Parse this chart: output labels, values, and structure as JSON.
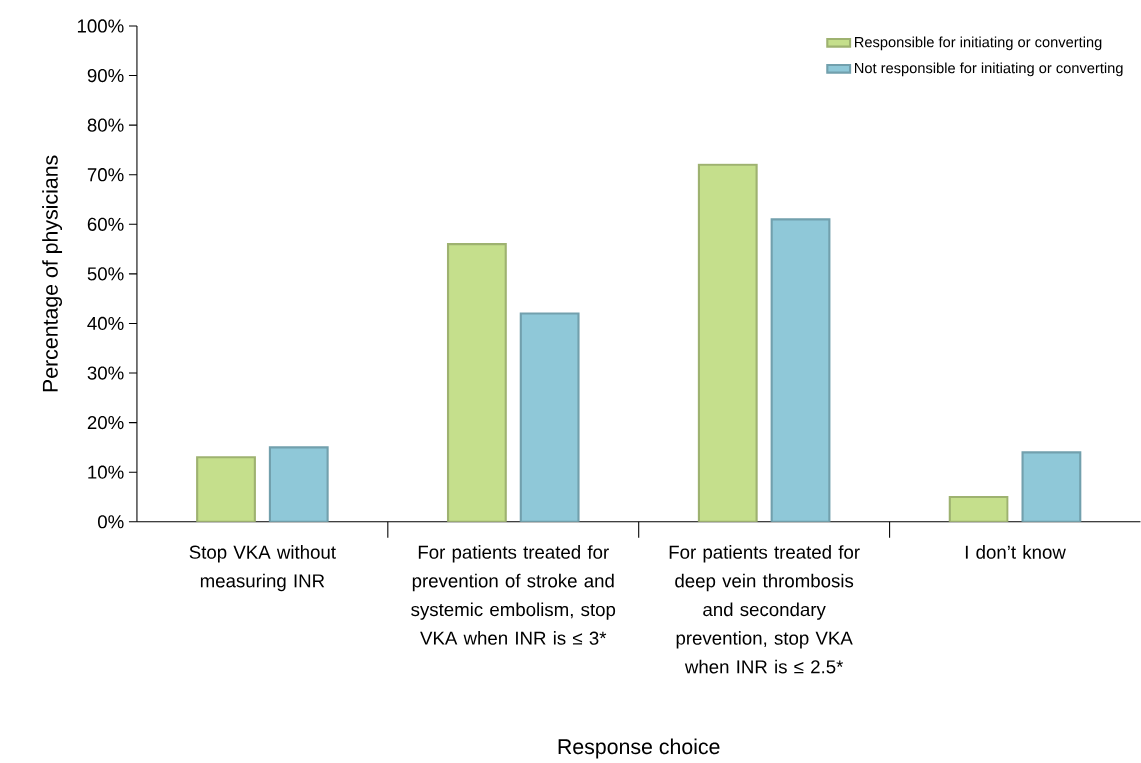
{
  "chart_data": {
    "type": "bar",
    "xlabel": "Response choice",
    "ylabel": "Percentage of physicians",
    "categories": [
      "Stop VKA without measuring INR",
      "For patients treated for prevention of stroke and systemic embolism, stop VKA when INR is ≤ 3*",
      "For patients treated for deep vein thrombosis and secondary prevention, stop VKA when INR is ≤ 2.5*",
      "I don’t know"
    ],
    "series": [
      {
        "name": "Responsible for initiating or converting",
        "color": "#c5df8c",
        "values": [
          13,
          56,
          72,
          5
        ]
      },
      {
        "name": "Not responsible for initiating or converting",
        "color": "#8fc8d8",
        "values": [
          15,
          42,
          61,
          14
        ]
      }
    ],
    "ylim": [
      0,
      100
    ],
    "yticks": [
      {
        "value": 0,
        "label": "0%"
      },
      {
        "value": 10,
        "label": "10%"
      },
      {
        "value": 20,
        "label": "20%"
      },
      {
        "value": 30,
        "label": "30%"
      },
      {
        "value": 40,
        "label": "40%"
      },
      {
        "value": 50,
        "label": "50%"
      },
      {
        "value": 60,
        "label": "60%"
      },
      {
        "value": 70,
        "label": "70%"
      },
      {
        "value": 80,
        "label": "80%"
      },
      {
        "value": 90,
        "label": "90%"
      },
      {
        "value": 100,
        "label": "100%"
      }
    ],
    "grid": false,
    "legend": "top right"
  }
}
